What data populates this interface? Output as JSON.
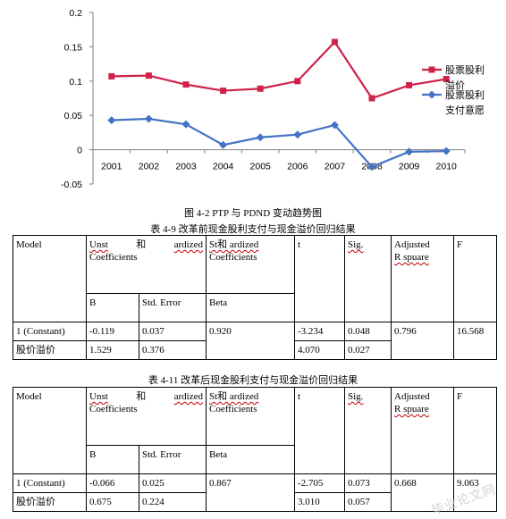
{
  "chart_data": {
    "type": "line",
    "categories": [
      "2001",
      "2002",
      "2003",
      "2004",
      "2005",
      "2006",
      "2007",
      "2008",
      "2009",
      "2010"
    ],
    "y_ticks": [
      "0.2",
      "0.15",
      "0.1",
      "0.05",
      "0",
      "-0.05"
    ],
    "ylim": [
      -0.05,
      0.2
    ],
    "grid": false,
    "legend_position": "right",
    "series": [
      {
        "name": "股票股利溢价",
        "legend_lines": [
          "股票股利",
          "溢价"
        ],
        "color": "#d0214a",
        "marker": "square",
        "values": [
          0.107,
          0.108,
          0.095,
          0.086,
          0.089,
          0.1,
          0.157,
          0.075,
          0.094,
          0.103
        ]
      },
      {
        "name": "股票股利支付意愿",
        "legend_lines": [
          "股票股利",
          "支付意愿"
        ],
        "color": "#4472c4",
        "marker": "diamond",
        "values": [
          0.043,
          0.045,
          0.037,
          0.007,
          0.018,
          0.022,
          0.036,
          -0.025,
          -0.003,
          -0.002
        ]
      }
    ]
  },
  "figure_caption": "图 4-2 PTP 与 PDND 变动趋势图",
  "tables": [
    {
      "title": "表 4-9 改革前现金股利支付与现金溢价回归结果",
      "headers": {
        "model": "Model",
        "unst_left": "Unst",
        "unst_mid": "和",
        "unst_right": "ardized",
        "unst_line2": "Coefficients",
        "std_line1": "St和 ardized",
        "std_line2": "Coefficients",
        "t": "t",
        "sig": "Sig.",
        "adj_line1": "Adjusted",
        "adj_line2": "R spuare",
        "f": "F",
        "b": "B",
        "std_error": "Std. Error",
        "beta": "Beta"
      },
      "rows": [
        {
          "model": "1 (Constant)",
          "b": "-0.119",
          "se": "0.037",
          "beta": "0.920",
          "t": "-3.234",
          "sig": "0.048",
          "adj_r2": "0.796",
          "f": "16.568"
        },
        {
          "model": "股价溢价",
          "b": "1.529",
          "se": "0.376",
          "t": "4.070",
          "sig": "0.027"
        }
      ]
    },
    {
      "title": "表 4-11 改革后现金股利支付与现金溢价回归结果",
      "headers": {
        "model": "Model",
        "unst_left": "Unst",
        "unst_mid": "和",
        "unst_right": "ardized",
        "unst_line2": "Coefficients",
        "std_line1": "St和 ardized",
        "std_line2": "Coefficients",
        "t": "t",
        "sig": "Sig.",
        "adj_line1": "Adjusted",
        "adj_line2": "R spuare",
        "f": "F",
        "b": "B",
        "std_error": "Std. Error",
        "beta": "Beta"
      },
      "rows": [
        {
          "model": "1 (Constant)",
          "b": "-0.066",
          "se": "0.025",
          "beta": "0.867",
          "t": "-2.705",
          "sig": "0.073",
          "adj_r2": "0.668",
          "f": "9.063"
        },
        {
          "model": "股价溢价",
          "b": "0.675",
          "se": "0.224",
          "t": "3.010",
          "sig": "0.057"
        }
      ]
    }
  ],
  "watermark": "毕业论文网"
}
